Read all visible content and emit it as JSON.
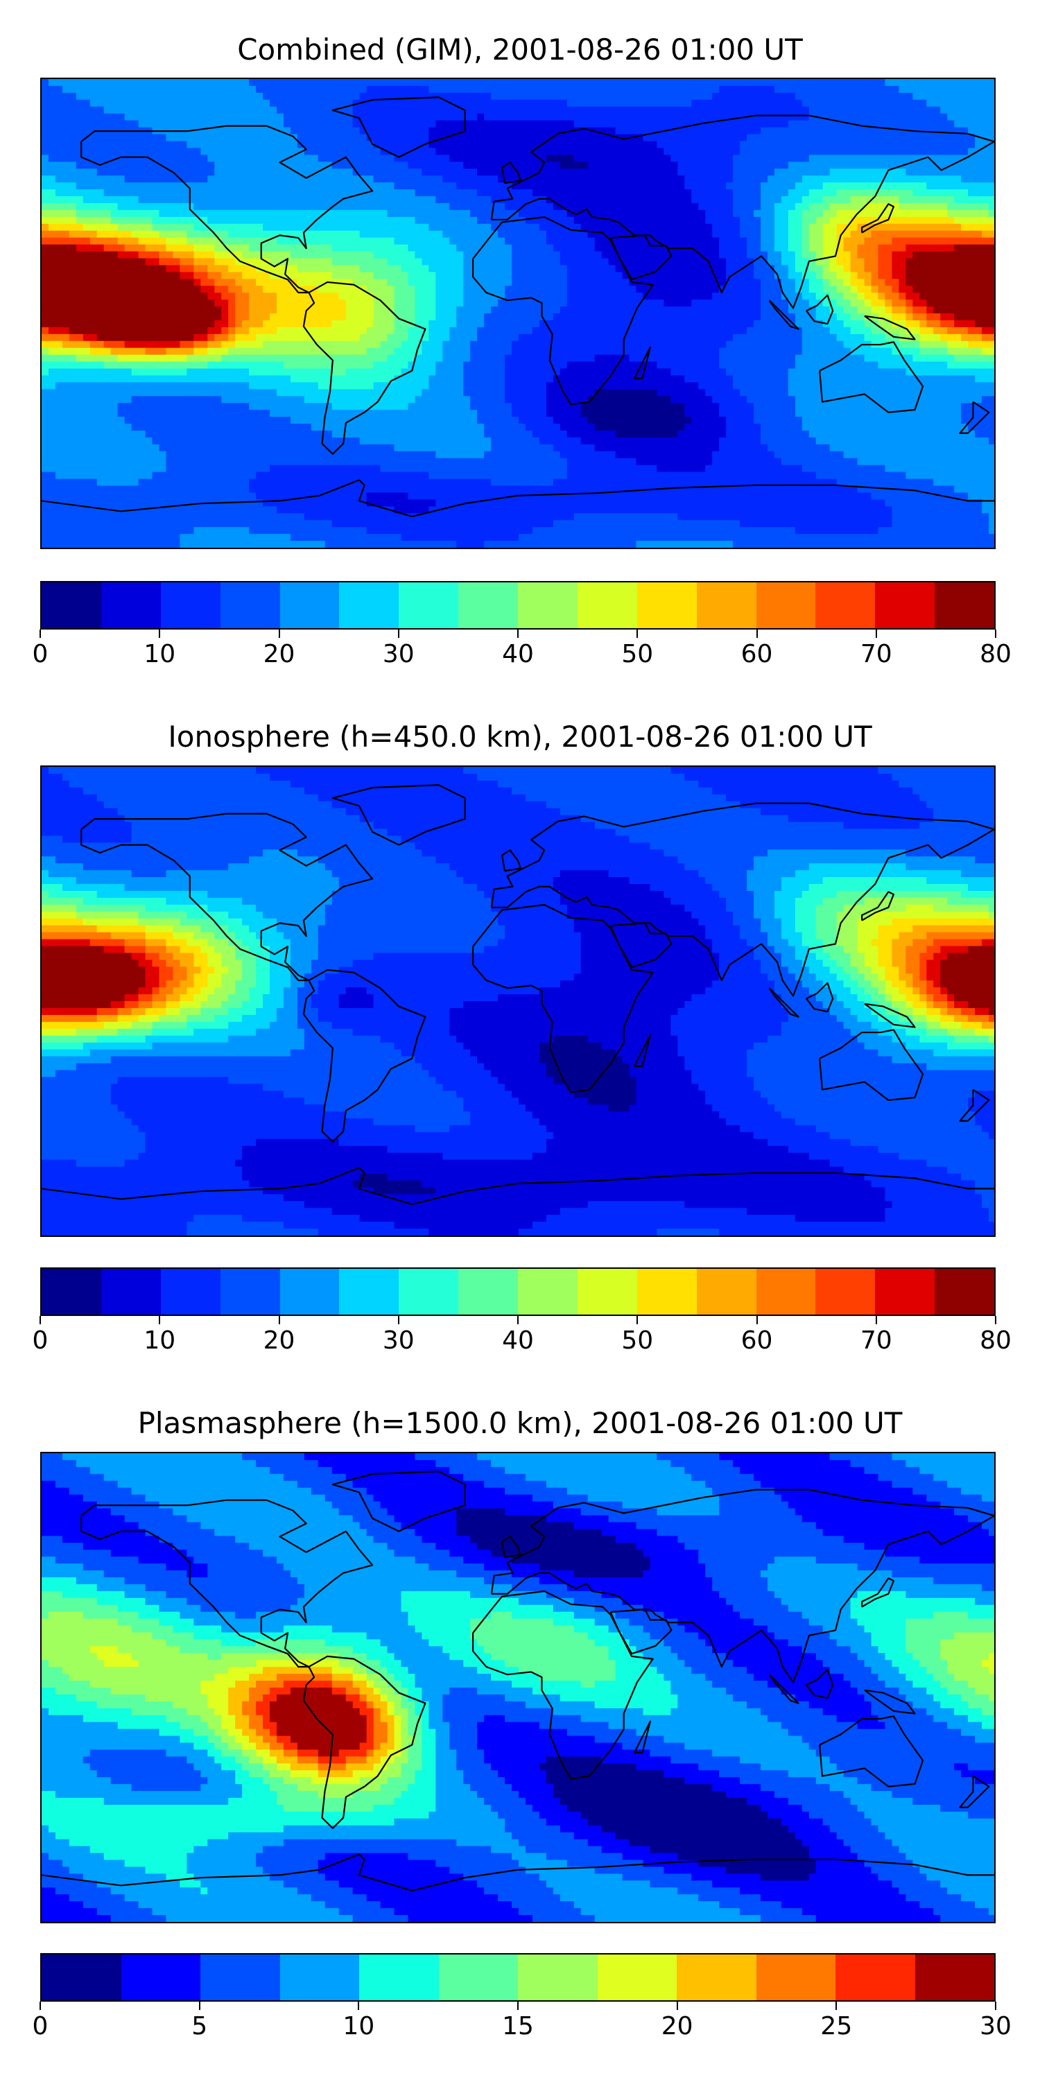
{
  "panels": [
    {
      "title": "Combined (GIM), 2001-08-26 01:00 UT",
      "colorbar": {
        "colors": [
          "#00008f",
          "#0000dc",
          "#0028ff",
          "#0050ff",
          "#0096ff",
          "#00d4ff",
          "#24ffd8",
          "#5cffa0",
          "#a0ff5c",
          "#d8ff24",
          "#ffe000",
          "#ffaa00",
          "#ff7800",
          "#ff4000",
          "#e00000",
          "#8f0000"
        ],
        "ticks": [
          0,
          10,
          20,
          30,
          40,
          50,
          60,
          70,
          80
        ],
        "vmin": 0,
        "vmax": 80
      },
      "field": {
        "base": 20,
        "blobs": [
          {
            "lon": -165,
            "lat": 8,
            "amp": 55,
            "rlon": 28,
            "rlat": 14
          },
          {
            "lon": -135,
            "lat": -5,
            "amp": 42,
            "rlon": 18,
            "rlat": 8
          },
          {
            "lon": -120,
            "lat": 10,
            "amp": 30,
            "rlon": 40,
            "rlat": 18
          },
          {
            "lon": -60,
            "lat": 0,
            "amp": 22,
            "rlon": 25,
            "rlat": 18
          },
          {
            "lon": 158,
            "lat": 15,
            "amp": 38,
            "rlon": 28,
            "rlat": 20
          },
          {
            "lon": 125,
            "lat": 30,
            "amp": 18,
            "rlon": 20,
            "rlat": 15
          },
          {
            "lon": 50,
            "lat": 10,
            "amp": -12,
            "rlon": 35,
            "rlat": 40
          },
          {
            "lon": 10,
            "lat": 65,
            "amp": -10,
            "rlon": 60,
            "rlat": 15
          },
          {
            "lon": 0,
            "lat": -72,
            "amp": -8,
            "rlon": 120,
            "rlat": 10
          },
          {
            "lon": 45,
            "lat": -40,
            "amp": -10,
            "rlon": 30,
            "rlat": 12
          }
        ]
      }
    },
    {
      "title": "Ionosphere  (h=450.0 km), 2001-08-26 01:00 UT",
      "colorbar": {
        "colors": [
          "#00008f",
          "#0000dc",
          "#0028ff",
          "#0050ff",
          "#0096ff",
          "#00d4ff",
          "#24ffd8",
          "#5cffa0",
          "#a0ff5c",
          "#d8ff24",
          "#ffe000",
          "#ffaa00",
          "#ff7800",
          "#ff4000",
          "#e00000",
          "#8f0000"
        ],
        "ticks": [
          0,
          10,
          20,
          30,
          40,
          50,
          60,
          70,
          80
        ],
        "vmin": 0,
        "vmax": 80
      },
      "field": {
        "base": 15,
        "blobs": [
          {
            "lon": -170,
            "lat": 5,
            "amp": 45,
            "rlon": 22,
            "rlat": 12
          },
          {
            "lon": -145,
            "lat": 12,
            "amp": 28,
            "rlon": 30,
            "rlat": 16
          },
          {
            "lon": -120,
            "lat": 20,
            "amp": 15,
            "rlon": 35,
            "rlat": 22
          },
          {
            "lon": -68,
            "lat": 0,
            "amp": -8,
            "rlon": 12,
            "rlat": 8
          },
          {
            "lon": 160,
            "lat": 15,
            "amp": 36,
            "rlon": 25,
            "rlat": 22
          },
          {
            "lon": 120,
            "lat": 30,
            "amp": 15,
            "rlon": 22,
            "rlat": 18
          },
          {
            "lon": 35,
            "lat": -10,
            "amp": -10,
            "rlon": 35,
            "rlat": 35
          },
          {
            "lon": 0,
            "lat": -70,
            "amp": -8,
            "rlon": 120,
            "rlat": 12
          }
        ]
      }
    },
    {
      "title": "Plasmasphere (h=1500.0 km), 2001-08-26 01:00 UT",
      "colorbar": {
        "colors": [
          "#00008f",
          "#0000ff",
          "#0050ff",
          "#00a0ff",
          "#10ffe0",
          "#5cffa0",
          "#a0ff5c",
          "#e0ff20",
          "#ffc000",
          "#ff7800",
          "#ff2800",
          "#a00000"
        ],
        "ticks": [
          0,
          5,
          10,
          15,
          20,
          25,
          30
        ],
        "vmin": 0,
        "vmax": 30
      },
      "field": {
        "base": 7,
        "blobs": [
          {
            "lon": -80,
            "lat": -8,
            "amp": 18,
            "rlon": 22,
            "rlat": 20
          },
          {
            "lon": -60,
            "lat": -15,
            "amp": 10,
            "rlon": 18,
            "rlat": 14
          },
          {
            "lon": -150,
            "lat": 5,
            "amp": 7,
            "rlon": 30,
            "rlat": 22
          },
          {
            "lon": -100,
            "lat": -50,
            "amp": 6,
            "rlon": 40,
            "rlat": 8
          },
          {
            "lon": 10,
            "lat": 15,
            "amp": 5,
            "rlon": 30,
            "rlat": 15
          },
          {
            "lon": 170,
            "lat": 10,
            "amp": 4,
            "rlon": 25,
            "rlat": 20
          },
          {
            "lon": 60,
            "lat": -50,
            "amp": -5,
            "rlon": 60,
            "rlat": 18
          },
          {
            "lon": 40,
            "lat": 55,
            "amp": -4,
            "rlon": 70,
            "rlat": 12
          }
        ]
      }
    }
  ]
}
